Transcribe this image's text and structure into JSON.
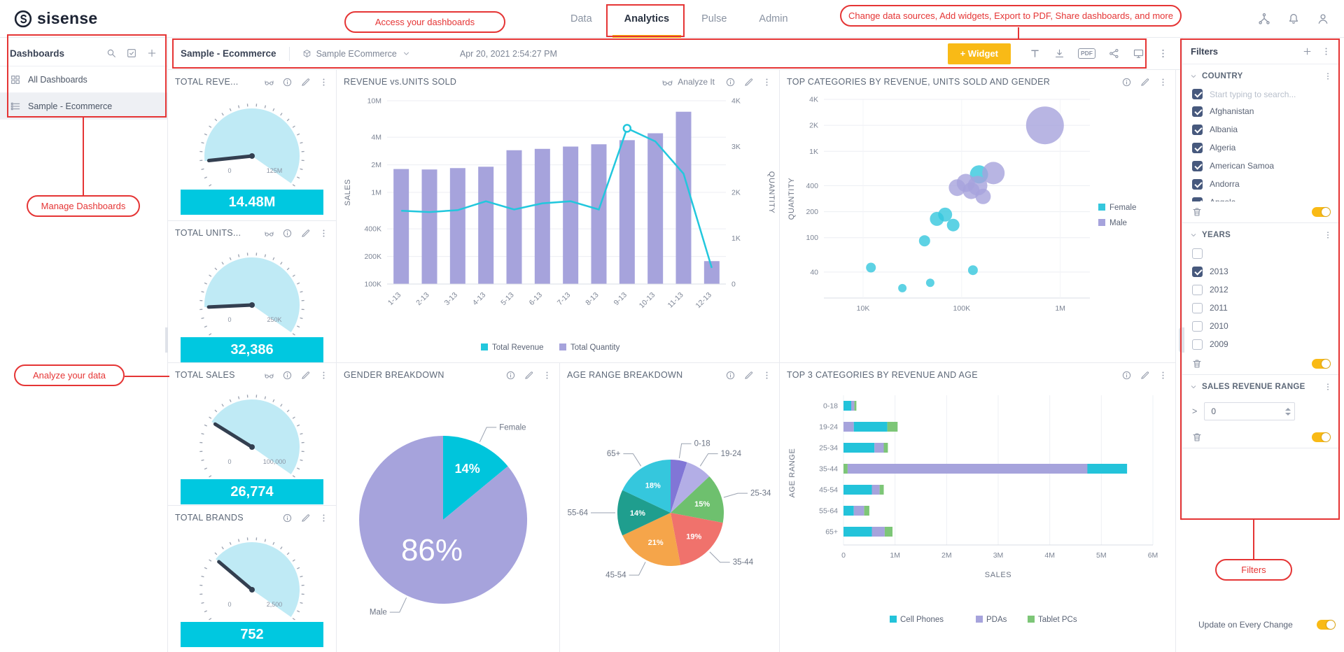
{
  "navbar": {
    "brand": "sisense",
    "tabs": [
      {
        "label": "Data",
        "active": false
      },
      {
        "label": "Analytics",
        "active": true
      },
      {
        "label": "Pulse",
        "active": false
      },
      {
        "label": "Admin",
        "active": false
      }
    ]
  },
  "icons": {
    "navbar": [
      "sitemap-icon",
      "notifications-bell-icon",
      "user-icon"
    ],
    "sidebar_header": [
      "search-icon",
      "checklist-icon",
      "plus-icon"
    ],
    "toolbar": [
      "text-widget-icon",
      "download-icon",
      "pdf-chip",
      "share-icon",
      "tv-icon",
      "more-icon"
    ],
    "widget_header": [
      "analyze-glasses-icon",
      "info-icon",
      "edit-pencil-icon",
      "more-icon"
    ]
  },
  "sidebar": {
    "title": "Dashboards",
    "items": [
      {
        "label": "All Dashboards",
        "selected": false
      },
      {
        "label": "Sample - Ecommerce",
        "selected": true
      }
    ]
  },
  "dash_header": {
    "title": "Sample - Ecommerce",
    "datasource": "Sample ECommerce",
    "timestamp": "Apr 20, 2021 2:54:27 PM",
    "widget_button": "+ Widget",
    "pdf_label": "PDF"
  },
  "annotations": {
    "access": "Access your dashboards",
    "change": "Change data sources, Add widgets, Export to PDF, Share dashboards, and more",
    "manage": "Manage Dashboards",
    "analyze": "Analyze your data",
    "filters": "Filters"
  },
  "widgets": {
    "total_revenue": {
      "title": "TOTAL REVE...",
      "value": "14.48M",
      "value_num": 14480000,
      "min": "0",
      "max": "125M",
      "max_num": 125000000
    },
    "total_units": {
      "title": "TOTAL UNITS...",
      "value": "32,386",
      "value_num": 32386,
      "min": "0",
      "max": "250K",
      "max_num": 250000
    },
    "total_sales": {
      "title": "TOTAL SALES",
      "value": "26,774",
      "value_num": 26774,
      "min": "0",
      "max": "100,000",
      "max_num": 100000
    },
    "total_brands": {
      "title": "TOTAL BRANDS",
      "value": "752",
      "value_num": 752,
      "min": "0",
      "max": "2,500",
      "max_num": 2500
    },
    "revenue_units": {
      "title": "REVENUE vs.UNITS SOLD",
      "analyze_label": "Analyze It"
    },
    "top_categories": {
      "title": "TOP CATEGORIES BY REVENUE, UNITS SOLD AND GENDER"
    },
    "gender": {
      "title": "GENDER BREAKDOWN"
    },
    "age_range": {
      "title": "AGE RANGE BREAKDOWN"
    },
    "top3": {
      "title": "TOP 3 CATEGORIES BY REVENUE AND AGE"
    }
  },
  "filters": {
    "title": "Filters",
    "country": {
      "title": "COUNTRY",
      "select_all": true,
      "search_placeholder": "Start typing to search...",
      "items": [
        {
          "label": "Afghanistan",
          "checked": true
        },
        {
          "label": "Albania",
          "checked": true
        },
        {
          "label": "Algeria",
          "checked": true
        },
        {
          "label": "American Samoa",
          "checked": true
        },
        {
          "label": "Andorra",
          "checked": true
        },
        {
          "label": "Angola",
          "checked": true
        }
      ]
    },
    "years": {
      "title": "YEARS",
      "select_all": false,
      "items": [
        {
          "label": "2013",
          "checked": true
        },
        {
          "label": "2012",
          "checked": false
        },
        {
          "label": "2011",
          "checked": false
        },
        {
          "label": "2010",
          "checked": false
        },
        {
          "label": "2009",
          "checked": false
        }
      ]
    },
    "range": {
      "title": "SALES REVENUE RANGE",
      "operator": ">",
      "value": "0"
    },
    "update_label": "Update on Every Change"
  },
  "chart_data": [
    {
      "id": "revenue_units",
      "type": "bar+line",
      "title": "REVENUE vs.UNITS SOLD",
      "categories": [
        "1-13",
        "2-13",
        "3-13",
        "4-13",
        "5-13",
        "6-13",
        "7-13",
        "8-13",
        "9-13",
        "10-13",
        "11-13",
        "12-13"
      ],
      "left_axis": {
        "label": "SALES",
        "scale": "log",
        "ticks": [
          "100K",
          "200K",
          "400K",
          "1M",
          "2M",
          "4M",
          "10M"
        ],
        "tick_values": [
          100000,
          200000,
          400000,
          1000000,
          2000000,
          4000000,
          10000000
        ],
        "min": 100000,
        "max": 10000000
      },
      "right_axis": {
        "label": "QUANTITY",
        "scale": "linear",
        "ticks": [
          "0",
          "1K",
          "2K",
          "3K",
          "4K"
        ],
        "tick_values": [
          0,
          1000,
          2000,
          3000,
          4000
        ],
        "min": 0,
        "max": 4000
      },
      "series": [
        {
          "name": "Total Revenue",
          "type": "line",
          "axis": "left",
          "color": "#22c7dd",
          "values": [
            630000,
            610000,
            640000,
            800000,
            650000,
            760000,
            800000,
            650000,
            5000000,
            3600000,
            1600000,
            150000
          ]
        },
        {
          "name": "Total Quantity",
          "type": "bar",
          "axis": "right",
          "color": "#a6a3dc",
          "values": [
            2510,
            2500,
            2530,
            2560,
            2920,
            2950,
            3000,
            3050,
            3140,
            3290,
            3760,
            500
          ]
        }
      ],
      "legend_position": "bottom"
    },
    {
      "id": "top_categories",
      "type": "scatter",
      "title": "TOP CATEGORIES BY REVENUE, UNITS SOLD AND GENDER",
      "x_axis": {
        "scale": "log",
        "ticks": [
          "10K",
          "100K",
          "1M"
        ],
        "tick_values": [
          10000,
          100000,
          1000000
        ],
        "min": 4000,
        "max": 2000000
      },
      "y_axis": {
        "label": "QUANTITY",
        "scale": "log",
        "ticks": [
          "40",
          "100",
          "200",
          "400",
          "1K",
          "2K",
          "4K"
        ],
        "tick_values": [
          40,
          100,
          200,
          400,
          1000,
          2000,
          4000
        ],
        "min": 20,
        "max": 4000
      },
      "series": [
        {
          "name": "Female",
          "color": "#35c7dd",
          "points": [
            [
              12000,
              45,
              7
            ],
            [
              25000,
              26,
              6
            ],
            [
              48000,
              30,
              6
            ],
            [
              42000,
              92,
              8
            ],
            [
              56000,
              165,
              10
            ],
            [
              68000,
              185,
              10
            ],
            [
              82000,
              140,
              9
            ],
            [
              130000,
              42,
              7
            ],
            [
              150000,
              540,
              13
            ]
          ]
        },
        {
          "name": "Male",
          "color": "#a6a3dc",
          "points": [
            [
              90000,
              380,
              12
            ],
            [
              110000,
              430,
              13
            ],
            [
              125000,
              350,
              12
            ],
            [
              145000,
              400,
              14
            ],
            [
              165000,
              300,
              11
            ],
            [
              210000,
              560,
              16
            ],
            [
              700000,
              2000,
              27
            ]
          ]
        }
      ],
      "legend_position": "right"
    },
    {
      "id": "gender",
      "type": "pie",
      "title": "GENDER BREAKDOWN",
      "slices": [
        {
          "label": "Female",
          "value": 14,
          "color": "#00c5dc",
          "pct_label": "14%"
        },
        {
          "label": "Male",
          "value": 86,
          "color": "#a6a3dc",
          "pct_label": "86%"
        }
      ]
    },
    {
      "id": "age_range",
      "type": "pie",
      "title": "AGE RANGE BREAKDOWN",
      "slices": [
        {
          "label": "0-18",
          "value": 5,
          "color": "#8176d6",
          "pct_label": ""
        },
        {
          "label": "19-24",
          "value": 8,
          "color": "#b3aee6",
          "pct_label": ""
        },
        {
          "label": "25-34",
          "value": 15,
          "color": "#6ec06e",
          "pct_label": "15%"
        },
        {
          "label": "35-44",
          "value": 19,
          "color": "#f0726c",
          "pct_label": "19%"
        },
        {
          "label": "45-54",
          "value": 21,
          "color": "#f5a54a",
          "pct_label": "21%"
        },
        {
          "label": "55-64",
          "value": 14,
          "color": "#1f9e8e",
          "pct_label": "14%"
        },
        {
          "label": "65+",
          "value": 18,
          "color": "#35c7dd",
          "pct_label": "18%"
        }
      ]
    },
    {
      "id": "top3",
      "type": "stacked_bar_h",
      "title": "TOP 3 CATEGORIES BY REVENUE AND AGE",
      "categories": [
        "0-18",
        "19-24",
        "25-34",
        "35-44",
        "45-54",
        "55-64",
        "65+"
      ],
      "x_axis": {
        "label": "SALES",
        "ticks": [
          "0",
          "1M",
          "2M",
          "3M",
          "4M",
          "5M",
          "6M"
        ],
        "tick_values": [
          0,
          1000000,
          2000000,
          3000000,
          4000000,
          5000000,
          6000000
        ],
        "min": 0,
        "max": 6000000
      },
      "y_label": "AGE RANGE",
      "legend": [
        {
          "name": "Cell Phones",
          "color": "#23c3da"
        },
        {
          "name": "PDAs",
          "color": "#a6a3dc"
        },
        {
          "name": "Tablet PCs",
          "color": "#7dc677"
        }
      ],
      "rows": [
        {
          "label": "0-18",
          "segments": [
            {
              "series": "Cell Phones",
              "value": 150000
            },
            {
              "series": "PDAs",
              "value": 60000
            },
            {
              "series": "Tablet PCs",
              "value": 40000
            }
          ]
        },
        {
          "label": "19-24",
          "segments": [
            {
              "series": "PDAs",
              "value": 200000
            },
            {
              "series": "Cell Phones",
              "value": 650000
            },
            {
              "series": "Tablet PCs",
              "value": 200000
            }
          ]
        },
        {
          "label": "25-34",
          "segments": [
            {
              "series": "Cell Phones",
              "value": 600000
            },
            {
              "series": "PDAs",
              "value": 180000
            },
            {
              "series": "Tablet PCs",
              "value": 80000
            }
          ]
        },
        {
          "label": "35-44",
          "segments": [
            {
              "series": "Tablet PCs",
              "value": 80000
            },
            {
              "series": "PDAs",
              "value": 4650000
            },
            {
              "series": "Cell Phones",
              "value": 770000
            }
          ]
        },
        {
          "label": "45-54",
          "segments": [
            {
              "series": "Cell Phones",
              "value": 550000
            },
            {
              "series": "PDAs",
              "value": 150000
            },
            {
              "series": "Tablet PCs",
              "value": 80000
            }
          ]
        },
        {
          "label": "55-64",
          "segments": [
            {
              "series": "Cell Phones",
              "value": 200000
            },
            {
              "series": "PDAs",
              "value": 200000
            },
            {
              "series": "Tablet PCs",
              "value": 100000
            }
          ]
        },
        {
          "label": "65+",
          "segments": [
            {
              "series": "Cell Phones",
              "value": 550000
            },
            {
              "series": "PDAs",
              "value": 250000
            },
            {
              "series": "Tablet PCs",
              "value": 150000
            }
          ]
        }
      ]
    }
  ]
}
